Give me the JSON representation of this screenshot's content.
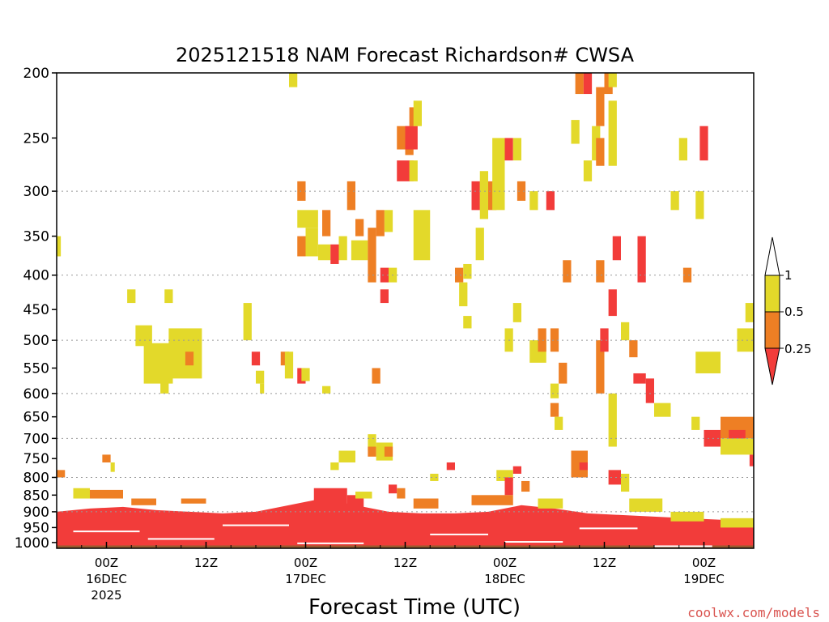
{
  "colors": {
    "yellow": "#e3d92a",
    "orange": "#ee7f24",
    "red": "#f23c3a",
    "ground": "#9a5a2e",
    "grid": "#999999"
  },
  "credit": "coolwx.com/models",
  "chart_data": {
    "type": "heatmap",
    "title": "2025121518 NAM Forecast Richardson# CWSA",
    "xlabel": "Forecast Time (UTC)",
    "ylabel": "",
    "y_axis": {
      "unit": "hPa",
      "scale": "log-pressure",
      "range": [
        1020,
        200
      ],
      "ticks": [
        200,
        250,
        300,
        350,
        400,
        450,
        500,
        550,
        600,
        650,
        700,
        750,
        800,
        850,
        900,
        950,
        1000
      ],
      "gridlines": [
        300,
        400,
        500,
        600,
        700,
        800,
        900
      ]
    },
    "x_axis": {
      "unit": "forecast hour",
      "range": [
        0,
        84
      ],
      "ticks": [
        {
          "hour": 6,
          "label": "00Z",
          "sub": "16DEC",
          "sub2": "2025"
        },
        {
          "hour": 18,
          "label": "12Z",
          "sub": "",
          "sub2": ""
        },
        {
          "hour": 30,
          "label": "00Z",
          "sub": "17DEC",
          "sub2": ""
        },
        {
          "hour": 42,
          "label": "12Z",
          "sub": "",
          "sub2": ""
        },
        {
          "hour": 54,
          "label": "00Z",
          "sub": "18DEC",
          "sub2": ""
        },
        {
          "hour": 66,
          "label": "12Z",
          "sub": "",
          "sub2": ""
        },
        {
          "hour": 78,
          "label": "00Z",
          "sub": "19DEC",
          "sub2": ""
        }
      ]
    },
    "legend": {
      "placement": "right",
      "labels": [
        "1",
        "0.5",
        "0.25"
      ],
      "categories": [
        {
          "range": "0.5-1",
          "color": "#e3d92a"
        },
        {
          "range": "0.25-0.5",
          "color": "#ee7f24"
        },
        {
          "range": "<0.25",
          "color": "#f23c3a"
        }
      ]
    },
    "surface_pressure_hPa": 1010,
    "boundary_layer": {
      "red_top_hPa": [
        900,
        890,
        885,
        895,
        900,
        905,
        900,
        880,
        860,
        880,
        900,
        905,
        905,
        900,
        880,
        890,
        905,
        910,
        915,
        920,
        925,
        930
      ],
      "hours": [
        0,
        4,
        8,
        12,
        16,
        20,
        24,
        28,
        32,
        36,
        40,
        44,
        48,
        52,
        56,
        60,
        64,
        68,
        72,
        76,
        80,
        84
      ]
    },
    "cells": [
      {
        "h0": 28,
        "h1": 29,
        "p0": 200,
        "p1": 210,
        "c": "y"
      },
      {
        "h0": 0,
        "h1": 0.5,
        "p0": 350,
        "p1": 375,
        "c": "y"
      },
      {
        "h0": 8.5,
        "h1": 9.5,
        "p0": 420,
        "p1": 440,
        "c": "y"
      },
      {
        "h0": 13,
        "h1": 14,
        "p0": 420,
        "p1": 440,
        "c": "y"
      },
      {
        "h0": 9.5,
        "h1": 11.5,
        "p0": 475,
        "p1": 510,
        "c": "y"
      },
      {
        "h0": 10.5,
        "h1": 14,
        "p0": 505,
        "p1": 580,
        "c": "y"
      },
      {
        "h0": 13.5,
        "h1": 17.5,
        "p0": 480,
        "p1": 570,
        "c": "y"
      },
      {
        "h0": 15.5,
        "h1": 16.5,
        "p0": 520,
        "p1": 545,
        "c": "o"
      },
      {
        "h0": 12.5,
        "h1": 13.5,
        "p0": 570,
        "p1": 600,
        "c": "y"
      },
      {
        "h0": 22.5,
        "h1": 23.5,
        "p0": 440,
        "p1": 500,
        "c": "y"
      },
      {
        "h0": 23.5,
        "h1": 24.5,
        "p0": 520,
        "p1": 545,
        "c": "r"
      },
      {
        "h0": 24,
        "h1": 25,
        "p0": 555,
        "p1": 580,
        "c": "y"
      },
      {
        "h0": 24.5,
        "h1": 25,
        "p0": 580,
        "p1": 600,
        "c": "y"
      },
      {
        "h0": 27,
        "h1": 28,
        "p0": 520,
        "p1": 545,
        "c": "o"
      },
      {
        "h0": 27.5,
        "h1": 28.5,
        "p0": 520,
        "p1": 570,
        "c": "y"
      },
      {
        "h0": 29,
        "h1": 30,
        "p0": 550,
        "p1": 580,
        "c": "r"
      },
      {
        "h0": 29.5,
        "h1": 30.5,
        "p0": 550,
        "p1": 575,
        "c": "y"
      },
      {
        "h0": 32,
        "h1": 33,
        "p0": 585,
        "p1": 600,
        "c": "y"
      },
      {
        "h0": 29,
        "h1": 30,
        "p0": 290,
        "p1": 310,
        "c": "o"
      },
      {
        "h0": 29,
        "h1": 31.5,
        "p0": 320,
        "p1": 340,
        "c": "y"
      },
      {
        "h0": 30,
        "h1": 31.5,
        "p0": 340,
        "p1": 375,
        "c": "y"
      },
      {
        "h0": 29,
        "h1": 30,
        "p0": 350,
        "p1": 375,
        "c": "o"
      },
      {
        "h0": 31.5,
        "h1": 33,
        "p0": 360,
        "p1": 380,
        "c": "y"
      },
      {
        "h0": 32,
        "h1": 33,
        "p0": 320,
        "p1": 350,
        "c": "o"
      },
      {
        "h0": 33,
        "h1": 34,
        "p0": 360,
        "p1": 385,
        "c": "r"
      },
      {
        "h0": 34,
        "h1": 35,
        "p0": 350,
        "p1": 380,
        "c": "y"
      },
      {
        "h0": 35,
        "h1": 36,
        "p0": 290,
        "p1": 320,
        "c": "o"
      },
      {
        "h0": 36,
        "h1": 37,
        "p0": 330,
        "p1": 350,
        "c": "o"
      },
      {
        "h0": 35.5,
        "h1": 37.5,
        "p0": 355,
        "p1": 380,
        "c": "y"
      },
      {
        "h0": 37.5,
        "h1": 38.5,
        "p0": 340,
        "p1": 410,
        "c": "o"
      },
      {
        "h0": 38.5,
        "h1": 39.5,
        "p0": 320,
        "p1": 350,
        "c": "o"
      },
      {
        "h0": 39,
        "h1": 40,
        "p0": 390,
        "p1": 410,
        "c": "r"
      },
      {
        "h0": 39.5,
        "h1": 40.5,
        "p0": 320,
        "p1": 345,
        "c": "y"
      },
      {
        "h0": 39,
        "h1": 40,
        "p0": 420,
        "p1": 440,
        "c": "r"
      },
      {
        "h0": 40,
        "h1": 41,
        "p0": 390,
        "p1": 410,
        "c": "y"
      },
      {
        "h0": 37.5,
        "h1": 38.5,
        "p0": 690,
        "p1": 730,
        "c": "y"
      },
      {
        "h0": 37.5,
        "h1": 38.5,
        "p0": 720,
        "p1": 745,
        "c": "o"
      },
      {
        "h0": 38.5,
        "h1": 40.5,
        "p0": 710,
        "p1": 755,
        "c": "y"
      },
      {
        "h0": 39.5,
        "h1": 40.5,
        "p0": 720,
        "p1": 745,
        "c": "o"
      },
      {
        "h0": 34,
        "h1": 36,
        "p0": 730,
        "p1": 760,
        "c": "y"
      },
      {
        "h0": 33,
        "h1": 34,
        "p0": 760,
        "p1": 780,
        "c": "y"
      },
      {
        "h0": 38,
        "h1": 39,
        "p0": 550,
        "p1": 580,
        "c": "o"
      },
      {
        "h0": 41,
        "h1": 43,
        "p0": 270,
        "p1": 290,
        "c": "r"
      },
      {
        "h0": 41,
        "h1": 42,
        "p0": 240,
        "p1": 260,
        "c": "o"
      },
      {
        "h0": 42,
        "h1": 43,
        "p0": 240,
        "p1": 265,
        "c": "o"
      },
      {
        "h0": 42,
        "h1": 43.5,
        "p0": 240,
        "p1": 260,
        "c": "r"
      },
      {
        "h0": 42.5,
        "h1": 43.5,
        "p0": 225,
        "p1": 240,
        "c": "o"
      },
      {
        "h0": 43,
        "h1": 44,
        "p0": 220,
        "p1": 240,
        "c": "y"
      },
      {
        "h0": 42.5,
        "h1": 43.5,
        "p0": 270,
        "p1": 290,
        "c": "y"
      },
      {
        "h0": 43,
        "h1": 45,
        "p0": 320,
        "p1": 380,
        "c": "y"
      },
      {
        "h0": 48,
        "h1": 49,
        "p0": 390,
        "p1": 410,
        "c": "o"
      },
      {
        "h0": 49,
        "h1": 50,
        "p0": 385,
        "p1": 405,
        "c": "y"
      },
      {
        "h0": 48.5,
        "h1": 49.5,
        "p0": 410,
        "p1": 445,
        "c": "y"
      },
      {
        "h0": 49,
        "h1": 50,
        "p0": 460,
        "p1": 480,
        "c": "y"
      },
      {
        "h0": 50,
        "h1": 51,
        "p0": 290,
        "p1": 320,
        "c": "r"
      },
      {
        "h0": 51,
        "h1": 52,
        "p0": 290,
        "p1": 320,
        "c": "o"
      },
      {
        "h0": 51,
        "h1": 52,
        "p0": 280,
        "p1": 330,
        "c": "y"
      },
      {
        "h0": 50.5,
        "h1": 51.5,
        "p0": 340,
        "p1": 380,
        "c": "y"
      },
      {
        "h0": 52,
        "h1": 53,
        "p0": 290,
        "p1": 320,
        "c": "o"
      },
      {
        "h0": 52.5,
        "h1": 54,
        "p0": 250,
        "p1": 320,
        "c": "y"
      },
      {
        "h0": 54,
        "h1": 55,
        "p0": 250,
        "p1": 270,
        "c": "r"
      },
      {
        "h0": 55,
        "h1": 56,
        "p0": 250,
        "p1": 270,
        "c": "y"
      },
      {
        "h0": 55.5,
        "h1": 56.5,
        "p0": 290,
        "p1": 310,
        "c": "o"
      },
      {
        "h0": 55,
        "h1": 56,
        "p0": 440,
        "p1": 470,
        "c": "y"
      },
      {
        "h0": 54,
        "h1": 55,
        "p0": 480,
        "p1": 520,
        "c": "y"
      },
      {
        "h0": 57,
        "h1": 58,
        "p0": 300,
        "p1": 320,
        "c": "y"
      },
      {
        "h0": 57,
        "h1": 59,
        "p0": 500,
        "p1": 540,
        "c": "y"
      },
      {
        "h0": 58,
        "h1": 59,
        "p0": 480,
        "p1": 520,
        "c": "o"
      },
      {
        "h0": 59.5,
        "h1": 60.5,
        "p0": 480,
        "p1": 520,
        "c": "o"
      },
      {
        "h0": 59,
        "h1": 60,
        "p0": 300,
        "p1": 320,
        "c": "r"
      },
      {
        "h0": 60.5,
        "h1": 61.5,
        "p0": 540,
        "p1": 580,
        "c": "o"
      },
      {
        "h0": 59.5,
        "h1": 60.5,
        "p0": 580,
        "p1": 610,
        "c": "y"
      },
      {
        "h0": 59.5,
        "h1": 60.5,
        "p0": 620,
        "p1": 650,
        "c": "o"
      },
      {
        "h0": 60,
        "h1": 61,
        "p0": 650,
        "p1": 680,
        "c": "y"
      },
      {
        "h0": 61,
        "h1": 62,
        "p0": 380,
        "p1": 410,
        "c": "o"
      },
      {
        "h0": 62,
        "h1": 63,
        "p0": 235,
        "p1": 255,
        "c": "y"
      },
      {
        "h0": 62.5,
        "h1": 63.5,
        "p0": 200,
        "p1": 215,
        "c": "o"
      },
      {
        "h0": 63.5,
        "h1": 64.5,
        "p0": 200,
        "p1": 215,
        "c": "r"
      },
      {
        "h0": 63.5,
        "h1": 64.5,
        "p0": 270,
        "p1": 290,
        "c": "y"
      },
      {
        "h0": 64.5,
        "h1": 65.5,
        "p0": 240,
        "p1": 270,
        "c": "y"
      },
      {
        "h0": 65,
        "h1": 66,
        "p0": 210,
        "p1": 240,
        "c": "o"
      },
      {
        "h0": 65,
        "h1": 66,
        "p0": 250,
        "p1": 275,
        "c": "o"
      },
      {
        "h0": 65,
        "h1": 66,
        "p0": 380,
        "p1": 410,
        "c": "o"
      },
      {
        "h0": 65,
        "h1": 66,
        "p0": 500,
        "p1": 600,
        "c": "o"
      },
      {
        "h0": 65.5,
        "h1": 66.5,
        "p0": 480,
        "p1": 520,
        "c": "r"
      },
      {
        "h0": 66,
        "h1": 67,
        "p0": 200,
        "p1": 215,
        "c": "o"
      },
      {
        "h0": 66.5,
        "h1": 67.5,
        "p0": 200,
        "p1": 210,
        "c": "y"
      },
      {
        "h0": 66.5,
        "h1": 67.5,
        "p0": 220,
        "p1": 275,
        "c": "y"
      },
      {
        "h0": 66.5,
        "h1": 67.5,
        "p0": 420,
        "p1": 460,
        "c": "r"
      },
      {
        "h0": 66.5,
        "h1": 67.5,
        "p0": 600,
        "p1": 720,
        "c": "y"
      },
      {
        "h0": 67,
        "h1": 68,
        "p0": 350,
        "p1": 380,
        "c": "r"
      },
      {
        "h0": 68,
        "h1": 69,
        "p0": 470,
        "p1": 500,
        "c": "y"
      },
      {
        "h0": 69,
        "h1": 70,
        "p0": 500,
        "p1": 530,
        "c": "o"
      },
      {
        "h0": 70,
        "h1": 71,
        "p0": 350,
        "p1": 410,
        "c": "r"
      },
      {
        "h0": 69.5,
        "h1": 71,
        "p0": 560,
        "p1": 580,
        "c": "r"
      },
      {
        "h0": 71,
        "h1": 72,
        "p0": 570,
        "p1": 620,
        "c": "r"
      },
      {
        "h0": 72,
        "h1": 74,
        "p0": 620,
        "p1": 650,
        "c": "y"
      },
      {
        "h0": 74,
        "h1": 75,
        "p0": 300,
        "p1": 320,
        "c": "y"
      },
      {
        "h0": 75,
        "h1": 76,
        "p0": 250,
        "p1": 270,
        "c": "y"
      },
      {
        "h0": 75.5,
        "h1": 76.5,
        "p0": 390,
        "p1": 410,
        "c": "o"
      },
      {
        "h0": 76.5,
        "h1": 77.5,
        "p0": 650,
        "p1": 680,
        "c": "y"
      },
      {
        "h0": 77,
        "h1": 78,
        "p0": 300,
        "p1": 330,
        "c": "y"
      },
      {
        "h0": 77.5,
        "h1": 78.5,
        "p0": 240,
        "p1": 270,
        "c": "r"
      },
      {
        "h0": 77,
        "h1": 80,
        "p0": 520,
        "p1": 560,
        "c": "y"
      },
      {
        "h0": 78,
        "h1": 80,
        "p0": 680,
        "p1": 720,
        "c": "r"
      },
      {
        "h0": 80,
        "h1": 84,
        "p0": 650,
        "p1": 700,
        "c": "o"
      },
      {
        "h0": 81,
        "h1": 83,
        "p0": 680,
        "p1": 720,
        "c": "r"
      },
      {
        "h0": 80,
        "h1": 84,
        "p0": 700,
        "p1": 740,
        "c": "y"
      },
      {
        "h0": 83,
        "h1": 84,
        "p0": 440,
        "p1": 470,
        "c": "y"
      },
      {
        "h0": 82,
        "h1": 84,
        "p0": 480,
        "p1": 520,
        "c": "y"
      },
      {
        "h0": 83.5,
        "h1": 84,
        "p0": 740,
        "p1": 770,
        "c": "r"
      },
      {
        "h0": 62,
        "h1": 64,
        "p0": 730,
        "p1": 800,
        "c": "o"
      },
      {
        "h0": 63,
        "h1": 64,
        "p0": 760,
        "p1": 780,
        "c": "r"
      },
      {
        "h0": 66.5,
        "h1": 68,
        "p0": 780,
        "p1": 820,
        "c": "r"
      },
      {
        "h0": 68,
        "h1": 69,
        "p0": 790,
        "p1": 840,
        "c": "y"
      },
      {
        "h0": 55,
        "h1": 56,
        "p0": 770,
        "p1": 790,
        "c": "r"
      },
      {
        "h0": 53,
        "h1": 55,
        "p0": 780,
        "p1": 810,
        "c": "y"
      },
      {
        "h0": 54,
        "h1": 55,
        "p0": 800,
        "p1": 850,
        "c": "r"
      },
      {
        "h0": 56,
        "h1": 57,
        "p0": 810,
        "p1": 840,
        "c": "o"
      },
      {
        "h0": 40,
        "h1": 41,
        "p0": 820,
        "p1": 845,
        "c": "r"
      },
      {
        "h0": 41,
        "h1": 42,
        "p0": 830,
        "p1": 860,
        "c": "o"
      },
      {
        "h0": 45,
        "h1": 46,
        "p0": 790,
        "p1": 810,
        "c": "y"
      },
      {
        "h0": 47,
        "h1": 48,
        "p0": 760,
        "p1": 780,
        "c": "r"
      },
      {
        "h0": 5.5,
        "h1": 6.5,
        "p0": 740,
        "p1": 760,
        "c": "o"
      },
      {
        "h0": 6.5,
        "h1": 7,
        "p0": 760,
        "p1": 785,
        "c": "y"
      },
      {
        "h0": 0,
        "h1": 1,
        "p0": 780,
        "p1": 800,
        "c": "o"
      },
      {
        "h0": 2,
        "h1": 4,
        "p0": 830,
        "p1": 860,
        "c": "y"
      },
      {
        "h0": 4,
        "h1": 8,
        "p0": 835,
        "p1": 860,
        "c": "o"
      },
      {
        "h0": 9,
        "h1": 12,
        "p0": 860,
        "p1": 880,
        "c": "o"
      },
      {
        "h0": 15,
        "h1": 18,
        "p0": 860,
        "p1": 875,
        "c": "o"
      },
      {
        "h0": 31,
        "h1": 35,
        "p0": 830,
        "p1": 880,
        "c": "r"
      },
      {
        "h0": 35,
        "h1": 37,
        "p0": 850,
        "p1": 910,
        "c": "r"
      },
      {
        "h0": 36,
        "h1": 38,
        "p0": 840,
        "p1": 860,
        "c": "y"
      },
      {
        "h0": 43,
        "h1": 46,
        "p0": 860,
        "p1": 890,
        "c": "o"
      },
      {
        "h0": 50,
        "h1": 55,
        "p0": 850,
        "p1": 880,
        "c": "o"
      },
      {
        "h0": 58,
        "h1": 61,
        "p0": 860,
        "p1": 890,
        "c": "y"
      },
      {
        "h0": 69,
        "h1": 73,
        "p0": 860,
        "p1": 900,
        "c": "y"
      },
      {
        "h0": 74,
        "h1": 78,
        "p0": 900,
        "p1": 930,
        "c": "y"
      },
      {
        "h0": 80,
        "h1": 84,
        "p0": 920,
        "p1": 950,
        "c": "y"
      }
    ]
  }
}
